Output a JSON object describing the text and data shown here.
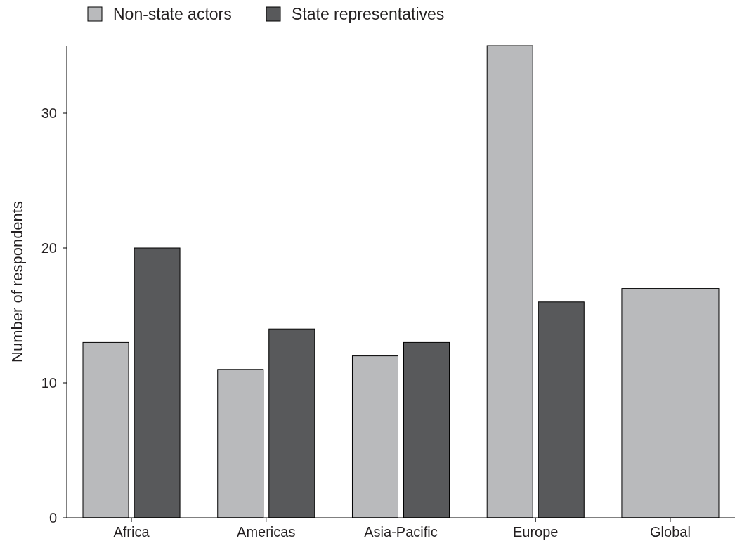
{
  "chart_data": {
    "type": "bar",
    "ylabel": "Number of respondents",
    "categories": [
      "Africa",
      "Americas",
      "Asia-Pacific",
      "Europe",
      "Global"
    ],
    "series": [
      {
        "name": "Non-state actors",
        "color": "#b9babc",
        "values": [
          13,
          11,
          12,
          35,
          17
        ]
      },
      {
        "name": "State representatives",
        "color": "#58595b",
        "values": [
          20,
          14,
          13,
          16,
          null
        ]
      }
    ],
    "ylim": [
      0,
      35
    ],
    "yticks": [
      0,
      10,
      20,
      30
    ],
    "grid": false,
    "legend": "top left"
  }
}
